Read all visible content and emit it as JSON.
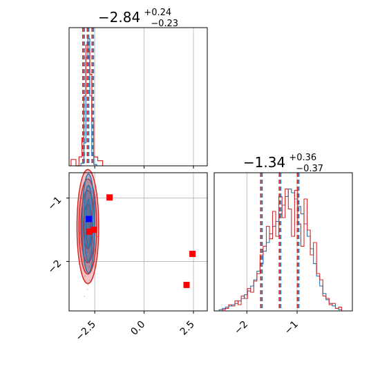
{
  "chart_data": [
    {
      "type": "histogram",
      "panel": "top-left",
      "title": {
        "main": "−2.84",
        "sup": "+0.24",
        "sub": "−0.23"
      },
      "xlim": [
        -3.8,
        3.2
      ],
      "grid": true,
      "quantiles": [
        -3.07,
        -2.84,
        -2.6
      ],
      "series": [
        {
          "color": "#1f77b4",
          "bins": [
            [
              -3.4,
              -3.2,
              0
            ],
            [
              -3.2,
              -3.05,
              0.02
            ],
            [
              -3.05,
              -2.95,
              0.18
            ],
            [
              -2.95,
              -2.85,
              0.85
            ],
            [
              -2.85,
              -2.75,
              1.0
            ],
            [
              -2.75,
              -2.65,
              0.55
            ],
            [
              -2.65,
              -2.55,
              0.08
            ],
            [
              -2.55,
              -2.4,
              0.01
            ]
          ]
        },
        {
          "color": "#d62728",
          "bins": [
            [
              -3.7,
              -3.45,
              0.05
            ],
            [
              -3.45,
              -3.3,
              0
            ],
            [
              -3.3,
              -3.15,
              0.07
            ],
            [
              -3.15,
              -3.05,
              0.22
            ],
            [
              -3.05,
              -2.95,
              0.55
            ],
            [
              -2.95,
              -2.85,
              0.95
            ],
            [
              -2.85,
              -2.75,
              0.9
            ],
            [
              -2.75,
              -2.65,
              0.72
            ],
            [
              -2.65,
              -2.55,
              0.35
            ],
            [
              -2.55,
              -2.35,
              0.07
            ],
            [
              -2.35,
              -2.1,
              0.04
            ]
          ]
        }
      ]
    },
    {
      "type": "scatter",
      "panel": "bottom-left",
      "xlim": [
        -3.8,
        3.2
      ],
      "ylim": [
        -2.78,
        -0.6
      ],
      "grid": true,
      "xticks": [
        "−2.5",
        "0.0",
        "2.5"
      ],
      "yticks": [
        "−1",
        "−2"
      ],
      "xtick_values": [
        -2.5,
        0.0,
        2.5
      ],
      "ytick_values": [
        -1,
        -2
      ],
      "contours": [
        {
          "color": "#d62728",
          "fill": "#d62728",
          "cx": -2.85,
          "cy": -1.45,
          "rx": [
            0.55,
            0.45,
            0.35,
            0.22
          ],
          "ry": [
            0.9,
            0.75,
            0.57,
            0.35
          ]
        },
        {
          "color": "#1f77b4",
          "fill": "#1f77b4",
          "cx": -2.82,
          "cy": -1.4,
          "rx": [
            0.32,
            0.22,
            0.12
          ],
          "ry": [
            0.78,
            0.6,
            0.38
          ]
        }
      ],
      "markers": [
        {
          "color": "#0000ff",
          "x": -2.8,
          "y": -1.33
        },
        {
          "color": "#ff0000",
          "x": -2.78,
          "y": -1.53
        },
        {
          "color": "#ff0000",
          "x": -2.55,
          "y": -1.5
        },
        {
          "color": "#ff0000",
          "x": -1.75,
          "y": -0.99
        },
        {
          "color": "#ff0000",
          "x": 2.45,
          "y": -1.88
        },
        {
          "color": "#ff0000",
          "x": 2.15,
          "y": -2.37
        }
      ]
    },
    {
      "type": "histogram",
      "panel": "bottom-right",
      "title": {
        "main": "−1.34",
        "sup": "+0.36",
        "sub": "−0.37"
      },
      "xlim": [
        -2.65,
        0.1
      ],
      "grid": true,
      "xticks": [
        "−2",
        "−1"
      ],
      "xtick_values": [
        -2,
        -1
      ],
      "quantiles": [
        -1.71,
        -1.34,
        -0.98
      ],
      "series": [
        {
          "color": "#1f77b4",
          "values": [
            0.01,
            0.02,
            0.03,
            0.04,
            0.05,
            0.06,
            0.08,
            0.1,
            0.13,
            0.16,
            0.2,
            0.25,
            0.32,
            0.38,
            0.48,
            0.55,
            0.62,
            0.68,
            0.72,
            0.78,
            0.85,
            0.92,
            0.98,
            0.95,
            0.9,
            0.84,
            0.78,
            0.7,
            0.6,
            0.5,
            0.38,
            0.28,
            0.2,
            0.14,
            0.09,
            0.06,
            0.04,
            0.02,
            0.01,
            0.0
          ]
        },
        {
          "color": "#d62728",
          "values": [
            0.0,
            0.01,
            0.02,
            0.05,
            0.04,
            0.08,
            0.05,
            0.12,
            0.1,
            0.18,
            0.15,
            0.24,
            0.3,
            0.45,
            0.52,
            0.68,
            0.58,
            0.8,
            0.6,
            0.92,
            0.75,
            0.98,
            0.82,
            0.6,
            0.97,
            0.7,
            0.52,
            0.9,
            0.65,
            0.45,
            0.55,
            0.3,
            0.25,
            0.12,
            0.1,
            0.05,
            0.06,
            0.02,
            0.03,
            0.0
          ]
        }
      ]
    }
  ]
}
